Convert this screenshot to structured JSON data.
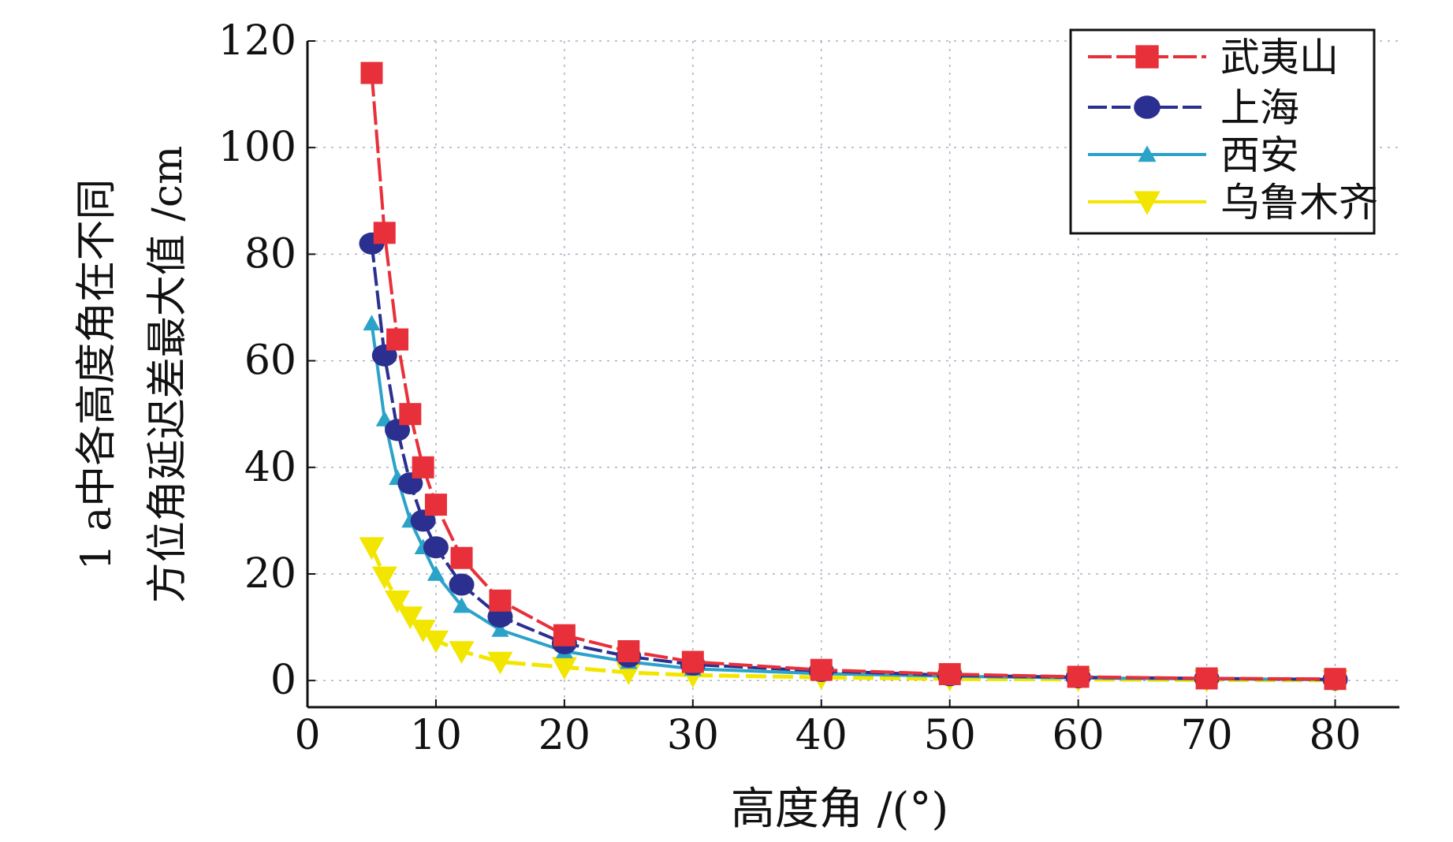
{
  "chart_data": {
    "type": "line",
    "title": "",
    "xlabel": "高度角 /(°)",
    "ylabel_lines": [
      "1 a中各高度角在不同",
      "方位角延迟差最大值 /cm"
    ],
    "xlim": [
      0,
      85
    ],
    "ylim": [
      -5,
      120
    ],
    "x_ticks": [
      0,
      10,
      20,
      30,
      40,
      50,
      60,
      70,
      80
    ],
    "y_ticks": [
      0,
      20,
      40,
      60,
      80,
      100,
      120
    ],
    "grid": true,
    "legend_position": "top-right",
    "series": [
      {
        "name": "武夷山",
        "color": "#e8303a",
        "marker": "square",
        "x": [
          5,
          6,
          7,
          8,
          9,
          10,
          12,
          15,
          20,
          25,
          30,
          40,
          50,
          60,
          70,
          80
        ],
        "y": [
          114,
          84,
          64,
          50,
          40,
          33,
          23,
          15,
          8.5,
          5.5,
          3.5,
          2,
          1.2,
          0.7,
          0.4,
          0.3
        ]
      },
      {
        "name": "上海",
        "color": "#2b2f8f",
        "marker": "circle",
        "x": [
          5,
          6,
          7,
          8,
          9,
          10,
          12,
          15,
          20,
          25,
          30,
          40,
          50,
          60,
          70,
          80
        ],
        "y": [
          82,
          61,
          47,
          37,
          30,
          25,
          18,
          12,
          7,
          4.5,
          3,
          1.8,
          1,
          0.6,
          0.4,
          0.2
        ]
      },
      {
        "name": "西安",
        "color": "#2ba3c9",
        "marker": "triangle-up",
        "x": [
          5,
          6,
          7,
          8,
          9,
          10,
          12,
          15,
          20,
          25,
          30,
          40,
          50,
          60,
          70,
          80
        ],
        "y": [
          67,
          49,
          38,
          30,
          25,
          20,
          14,
          9.5,
          5.5,
          3.5,
          2.2,
          1.3,
          0.8,
          0.5,
          0.3,
          0.2
        ]
      },
      {
        "name": "乌鲁木齐",
        "color": "#f2e600",
        "marker": "triangle-down",
        "x": [
          5,
          6,
          7,
          8,
          9,
          10,
          12,
          15,
          20,
          25,
          30,
          40,
          50,
          60,
          70,
          80
        ],
        "y": [
          25,
          19.5,
          15,
          12,
          9.5,
          7.5,
          5.5,
          3.5,
          2.5,
          1.5,
          1,
          0.6,
          0.3,
          0.2,
          0.1,
          0.05
        ]
      }
    ]
  }
}
